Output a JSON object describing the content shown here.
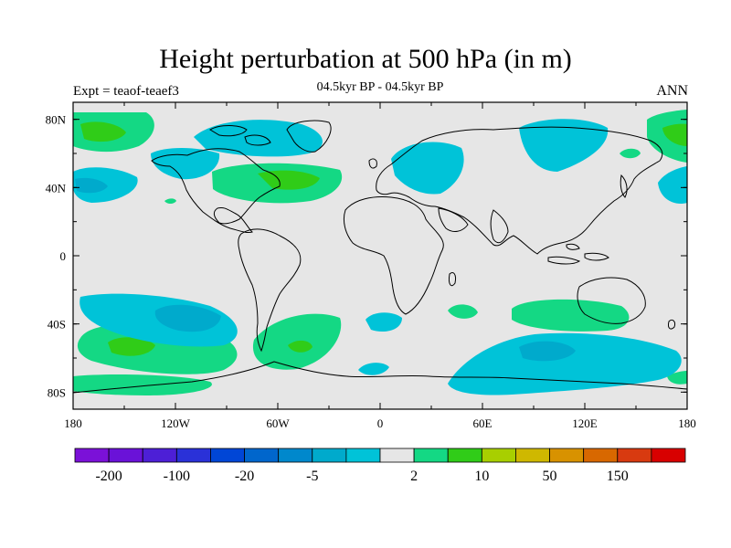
{
  "title": "Height perturbation at 500 hPa (in m)",
  "subtitle": "04.5kyr BP - 04.5kyr BP",
  "experiment": "Expt = teaof-teaef3",
  "season": "ANN",
  "map": {
    "lon_range": [
      -180,
      180
    ],
    "lat_range": [
      -90,
      90
    ],
    "x_ticks": [
      "180",
      "120W",
      "60W",
      "0",
      "60E",
      "120E",
      "180"
    ],
    "y_ticks": [
      "80N",
      "40N",
      "0",
      "40S",
      "80S"
    ],
    "background_color": "#e6e6e6"
  },
  "colorbar": {
    "colors": [
      "#7b11d8",
      "#6a12d8",
      "#4d1fd6",
      "#2a31d8",
      "#0046d6",
      "#0066cc",
      "#0088cc",
      "#00aacc",
      "#00c3d8",
      "#e6e6e6",
      "#14d884",
      "#30cc18",
      "#a8cf00",
      "#cfb800",
      "#d89200",
      "#d86800",
      "#d83a10",
      "#d80000"
    ],
    "labels": [
      "-200",
      "-100",
      "-20",
      "-5",
      "2",
      "10",
      "50",
      "150"
    ]
  },
  "chart_data": {
    "type": "contour_map",
    "variable": "Height perturbation at 500 hPa",
    "units": "m",
    "title": "Height perturbation at 500 hPa (in m)",
    "subtitle": "04.5kyr BP - 04.5kyr BP",
    "levels": [
      -200,
      -100,
      -20,
      -5,
      2,
      10,
      50,
      150
    ],
    "features": [
      {
        "region": "North Pacific/Alaska 60-80N",
        "sign": "positive",
        "lon": -160,
        "lat": 72
      },
      {
        "region": "East Pacific 40N",
        "sign": "negative",
        "lon": -168,
        "lat": 40
      },
      {
        "region": "Greenland/Arctic",
        "sign": "negative",
        "lon": -50,
        "lat": 73
      },
      {
        "region": "Canada/Hudson",
        "sign": "negative",
        "lon": -98,
        "lat": 62
      },
      {
        "region": "North Atlantic 45N",
        "sign": "positive",
        "lon": -52,
        "lat": 45
      },
      {
        "region": "Europe/Russia",
        "sign": "negative",
        "lon": 25,
        "lat": 55
      },
      {
        "region": "Arctic Siberia",
        "sign": "negative",
        "lon": 100,
        "lat": 75
      },
      {
        "region": "Bering Sea",
        "sign": "positive",
        "lon": 178,
        "lat": 72
      },
      {
        "region": "West Pacific 40N",
        "sign": "negative",
        "lon": 170,
        "lat": 40
      },
      {
        "region": "South Pacific 35S",
        "sign": "negative",
        "lon": -120,
        "lat": -35
      },
      {
        "region": "South Pacific 50-60S",
        "sign": "positive",
        "lon": -130,
        "lat": -55
      },
      {
        "region": "South Atlantic 50S",
        "sign": "positive",
        "lon": -45,
        "lat": -50
      },
      {
        "region": "South Indian 40S",
        "sign": "negative",
        "lon": 5,
        "lat": -38
      },
      {
        "region": "Indian Ocean 30S",
        "sign": "positive",
        "lon": 100,
        "lat": -32
      },
      {
        "region": "Southern Ocean 55S",
        "sign": "negative",
        "lon": 95,
        "lat": -55
      }
    ]
  }
}
